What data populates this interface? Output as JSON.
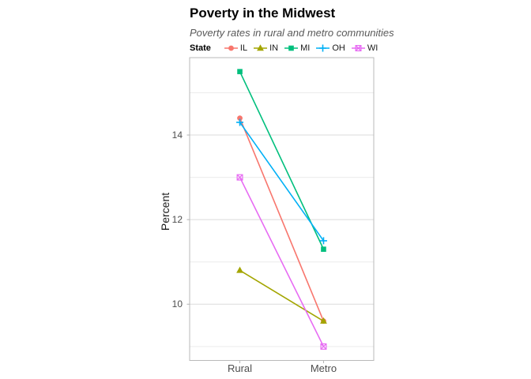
{
  "chart_data": {
    "type": "line",
    "title": "Poverty in the Midwest",
    "subtitle": "Poverty rates in rural and metro communities",
    "legend_title": "State",
    "legend_position": "top",
    "xlabel": "",
    "ylabel": "Percent",
    "categories": [
      "Rural",
      "Metro"
    ],
    "series": [
      {
        "name": "IL",
        "values": [
          14.4,
          9.6
        ],
        "color": "#F8766D",
        "shape": "circle"
      },
      {
        "name": "IN",
        "values": [
          10.8,
          9.6
        ],
        "color": "#A3A500",
        "shape": "triangle"
      },
      {
        "name": "MI",
        "values": [
          15.5,
          11.3
        ],
        "color": "#00BF7D",
        "shape": "square"
      },
      {
        "name": "OH",
        "values": [
          14.3,
          11.5
        ],
        "color": "#00B0F6",
        "shape": "plus"
      },
      {
        "name": "WI",
        "values": [
          13.0,
          9.0
        ],
        "color": "#E76BF3",
        "shape": "square-cross"
      }
    ],
    "ylim": [
      8.67,
      15.83
    ],
    "y_major_ticks": [
      10,
      12,
      14
    ],
    "y_minor_ticks": [
      9,
      11,
      13,
      15
    ],
    "grid": "horizontal-only"
  }
}
